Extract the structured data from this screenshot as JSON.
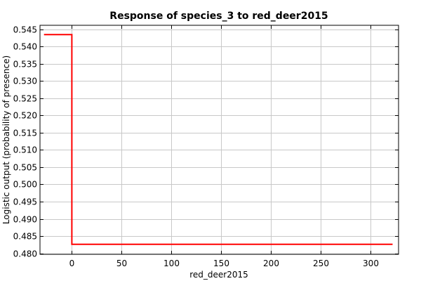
{
  "chart_data": {
    "type": "line",
    "title": "Response of species_3 to red_deer2015",
    "xlabel": "red_deer2015",
    "ylabel": "Logistic output (probability of presence)",
    "xlim": [
      -32,
      328
    ],
    "ylim": [
      0.4797,
      0.5462
    ],
    "x_ticks": [
      "0",
      "50",
      "100",
      "150",
      "200",
      "250",
      "300"
    ],
    "x_tick_values": [
      0,
      50,
      100,
      150,
      200,
      250,
      300
    ],
    "y_ticks": [
      "0.480",
      "0.485",
      "0.490",
      "0.495",
      "0.500",
      "0.505",
      "0.510",
      "0.515",
      "0.520",
      "0.525",
      "0.530",
      "0.535",
      "0.540",
      "0.545"
    ],
    "y_tick_values": [
      0.48,
      0.485,
      0.49,
      0.495,
      0.5,
      0.505,
      0.51,
      0.515,
      0.52,
      0.525,
      0.53,
      0.535,
      0.54,
      0.545
    ],
    "grid": true,
    "series": [
      {
        "color": "#ff0000",
        "x": [
          -28,
          0,
          0,
          1,
          322
        ],
        "y": [
          0.5435,
          0.5435,
          0.4826,
          0.4826,
          0.4826
        ]
      }
    ]
  }
}
